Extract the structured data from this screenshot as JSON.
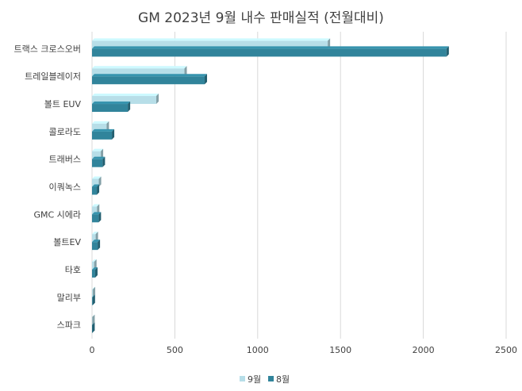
{
  "chart_data": {
    "type": "bar",
    "orientation": "horizontal",
    "title": "GM 2023년 9월 내수 판매실적 (전월대비)",
    "xlabel": "",
    "ylabel": "",
    "xlim": [
      0,
      2500
    ],
    "x_ticks": [
      0,
      500,
      1000,
      1500,
      2000,
      2500
    ],
    "grid": true,
    "legend_position": "bottom",
    "categories": [
      "트랙스 크로스오버",
      "트레일블레이저",
      "볼트 EUV",
      "콜로라도",
      "트래버스",
      "이쿼녹스",
      "GMC 시에라",
      "볼트EV",
      "타호",
      "말리부",
      "스파크"
    ],
    "series": [
      {
        "name": "9월",
        "color": "#b7dee8",
        "values": [
          1423,
          558,
          388,
          88,
          53,
          41,
          30,
          22,
          13,
          5,
          2
        ]
      },
      {
        "name": "8월",
        "color": "#31849b",
        "values": [
          2140,
          680,
          216,
          120,
          64,
          29,
          40,
          34,
          19,
          4,
          2
        ]
      }
    ]
  }
}
